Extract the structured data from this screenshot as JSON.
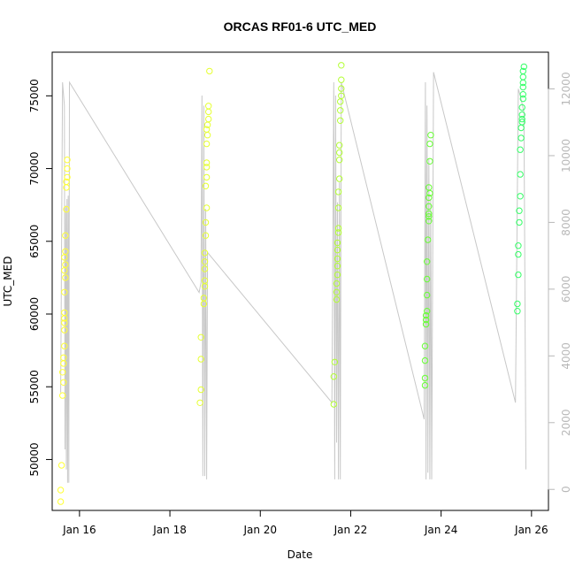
{
  "chart_data": {
    "type": "scatter",
    "title": "ORCAS RF01-6 UTC_MED",
    "xlabel": "Date",
    "ylabel": "UTC_MED",
    "xlim": [
      "2016-01-15T09:30",
      "2016-01-26T09:00"
    ],
    "ylim": [
      46500,
      78000
    ],
    "x_ticks": [
      {
        "date": "2016-01-16",
        "label": "Jan 16"
      },
      {
        "date": "2016-01-18",
        "label": "Jan 18"
      },
      {
        "date": "2016-01-20",
        "label": "Jan 20"
      },
      {
        "date": "2016-01-22",
        "label": "Jan 22"
      },
      {
        "date": "2016-01-24",
        "label": "Jan 24"
      },
      {
        "date": "2016-01-26",
        "label": "Jan 26"
      }
    ],
    "y_ticks": [
      50000,
      55000,
      60000,
      65000,
      70000,
      75000
    ],
    "y2_ticks": [
      0,
      2000,
      4000,
      6000,
      8000,
      10000,
      12000
    ],
    "y2lim": [
      -630,
      13100
    ],
    "grid": false,
    "legend": "none",
    "series": [
      {
        "color": "#ffff33",
        "points": [
          [
            "2016-01-15T14:00",
            47100
          ],
          [
            "2016-01-15T14:00",
            47900
          ],
          [
            "2016-01-15T14:30",
            49600
          ],
          [
            "2016-01-15T15:00",
            54400
          ],
          [
            "2016-01-15T15:30",
            55300
          ],
          [
            "2016-01-15T15:00",
            56000
          ],
          [
            "2016-01-15T15:30",
            56600
          ],
          [
            "2016-01-15T15:30",
            57000
          ],
          [
            "2016-01-15T16:00",
            57800
          ],
          [
            "2016-01-15T16:00",
            58900
          ],
          [
            "2016-01-15T16:00",
            59400
          ],
          [
            "2016-01-15T16:00",
            59700
          ],
          [
            "2016-01-15T16:00",
            60100
          ],
          [
            "2016-01-15T16:00",
            61500
          ],
          [
            "2016-01-15T16:30",
            62500
          ],
          [
            "2016-01-15T16:00",
            63000
          ],
          [
            "2016-01-15T16:30",
            63400
          ],
          [
            "2016-01-15T16:00",
            63900
          ],
          [
            "2016-01-15T16:30",
            64300
          ],
          [
            "2016-01-15T16:30",
            65400
          ],
          [
            "2016-01-15T17:00",
            67200
          ],
          [
            "2016-01-15T17:00",
            68700
          ],
          [
            "2016-01-15T17:00",
            69100
          ],
          [
            "2016-01-15T17:30",
            69400
          ],
          [
            "2016-01-15T17:30",
            70000
          ],
          [
            "2016-01-15T17:30",
            70600
          ]
        ]
      },
      {
        "color": "#e6ff33",
        "points": [
          [
            "2016-01-18T16:00",
            53900
          ],
          [
            "2016-01-18T16:30",
            54800
          ],
          [
            "2016-01-18T16:30",
            56900
          ],
          [
            "2016-01-18T16:30",
            58400
          ],
          [
            "2016-01-18T18:00",
            60700
          ],
          [
            "2016-01-18T18:00",
            61100
          ],
          [
            "2016-01-18T18:30",
            61900
          ],
          [
            "2016-01-18T18:30",
            62300
          ],
          [
            "2016-01-18T18:30",
            63100
          ],
          [
            "2016-01-18T18:30",
            63600
          ],
          [
            "2016-01-18T18:30",
            64200
          ],
          [
            "2016-01-18T19:00",
            65400
          ],
          [
            "2016-01-18T19:00",
            66300
          ],
          [
            "2016-01-18T19:30",
            67300
          ],
          [
            "2016-01-18T19:00",
            68800
          ],
          [
            "2016-01-18T19:30",
            69400
          ],
          [
            "2016-01-18T19:30",
            70100
          ],
          [
            "2016-01-18T19:30",
            70400
          ],
          [
            "2016-01-18T19:30",
            71700
          ],
          [
            "2016-01-18T20:00",
            72300
          ],
          [
            "2016-01-18T19:30",
            72700
          ],
          [
            "2016-01-18T20:00",
            73000
          ],
          [
            "2016-01-18T20:30",
            73400
          ],
          [
            "2016-01-18T20:30",
            73900
          ],
          [
            "2016-01-18T20:30",
            74300
          ],
          [
            "2016-01-18T21:00",
            76700
          ]
        ]
      },
      {
        "color": "#b3ff33",
        "points": [
          [
            "2016-01-21T15:00",
            53800
          ],
          [
            "2016-01-21T15:00",
            55700
          ],
          [
            "2016-01-21T15:30",
            56700
          ],
          [
            "2016-01-21T16:30",
            61000
          ],
          [
            "2016-01-21T16:30",
            61500
          ],
          [
            "2016-01-21T16:30",
            62100
          ],
          [
            "2016-01-21T17:00",
            62700
          ],
          [
            "2016-01-21T17:00",
            63300
          ],
          [
            "2016-01-21T17:00",
            63800
          ],
          [
            "2016-01-21T17:00",
            64400
          ],
          [
            "2016-01-21T17:00",
            64900
          ],
          [
            "2016-01-21T17:30",
            65600
          ],
          [
            "2016-01-21T17:30",
            65900
          ],
          [
            "2016-01-21T17:30",
            67300
          ],
          [
            "2016-01-21T17:30",
            68400
          ],
          [
            "2016-01-21T18:00",
            69300
          ],
          [
            "2016-01-21T18:00",
            70600
          ],
          [
            "2016-01-21T18:00",
            71100
          ],
          [
            "2016-01-21T18:00",
            71600
          ],
          [
            "2016-01-21T18:30",
            73300
          ],
          [
            "2016-01-21T18:30",
            74000
          ],
          [
            "2016-01-21T18:30",
            74600
          ],
          [
            "2016-01-21T19:00",
            75000
          ],
          [
            "2016-01-21T19:00",
            75500
          ],
          [
            "2016-01-21T19:00",
            76100
          ],
          [
            "2016-01-21T19:00",
            77100
          ]
        ]
      },
      {
        "color": "#66ff33",
        "points": [
          [
            "2016-01-23T15:30",
            55100
          ],
          [
            "2016-01-23T15:30",
            55600
          ],
          [
            "2016-01-23T15:30",
            56800
          ],
          [
            "2016-01-23T15:30",
            57800
          ],
          [
            "2016-01-23T16:00",
            59300
          ],
          [
            "2016-01-23T16:00",
            59600
          ],
          [
            "2016-01-23T16:00",
            59900
          ],
          [
            "2016-01-23T16:30",
            60200
          ],
          [
            "2016-01-23T16:30",
            61300
          ],
          [
            "2016-01-23T16:30",
            62400
          ],
          [
            "2016-01-23T16:30",
            63600
          ],
          [
            "2016-01-23T17:00",
            65100
          ],
          [
            "2016-01-23T17:30",
            66400
          ],
          [
            "2016-01-23T17:30",
            66700
          ],
          [
            "2016-01-23T17:30",
            66900
          ],
          [
            "2016-01-23T17:30",
            67400
          ],
          [
            "2016-01-23T17:30",
            68000
          ],
          [
            "2016-01-23T18:00",
            68300
          ],
          [
            "2016-01-23T17:30",
            68700
          ],
          [
            "2016-01-23T18:00",
            70500
          ],
          [
            "2016-01-23T18:00",
            71700
          ],
          [
            "2016-01-23T18:30",
            72300
          ]
        ]
      },
      {
        "color": "#33ff66",
        "points": [
          [
            "2016-01-25T16:30",
            60200
          ],
          [
            "2016-01-25T16:30",
            60700
          ],
          [
            "2016-01-25T17:00",
            62700
          ],
          [
            "2016-01-25T17:00",
            64100
          ],
          [
            "2016-01-25T17:00",
            64700
          ],
          [
            "2016-01-25T17:30",
            66300
          ],
          [
            "2016-01-25T17:30",
            67100
          ],
          [
            "2016-01-25T18:00",
            68100
          ],
          [
            "2016-01-25T18:00",
            69600
          ],
          [
            "2016-01-25T18:00",
            71300
          ],
          [
            "2016-01-25T18:30",
            72100
          ],
          [
            "2016-01-25T18:30",
            72800
          ],
          [
            "2016-01-25T19:00",
            73200
          ],
          [
            "2016-01-25T19:00",
            73700
          ],
          [
            "2016-01-25T19:00",
            73400
          ],
          [
            "2016-01-25T19:00",
            74200
          ],
          [
            "2016-01-25T19:30",
            74800
          ],
          [
            "2016-01-25T19:30",
            75100
          ],
          [
            "2016-01-25T19:30",
            75600
          ],
          [
            "2016-01-25T19:30",
            75900
          ],
          [
            "2016-01-25T19:30",
            76300
          ],
          [
            "2016-01-25T19:30",
            76700
          ],
          [
            "2016-01-25T20:00",
            77000
          ]
        ]
      }
    ],
    "secondary_line": {
      "color": "#c8c8c8",
      "points": [
        [
          "2016-01-15T14:00",
          2900
        ],
        [
          "2016-01-15T15:00",
          12200
        ],
        [
          "2016-01-15T16:00",
          11500
        ],
        [
          "2016-01-15T16:20",
          1200
        ],
        [
          "2016-01-15T16:40",
          8500
        ],
        [
          "2016-01-15T17:00",
          600
        ],
        [
          "2016-01-15T17:20",
          8700
        ],
        [
          "2016-01-15T17:40",
          200
        ],
        [
          "2016-01-15T18:00",
          8800
        ],
        [
          "2016-01-15T18:20",
          200
        ],
        [
          "2016-01-15T18:40",
          12200
        ],
        [
          "2016-01-18T15:30",
          5900
        ],
        [
          "2016-01-18T16:30",
          6200
        ],
        [
          "2016-01-18T17:00",
          11800
        ],
        [
          "2016-01-18T17:30",
          400
        ],
        [
          "2016-01-18T18:00",
          11500
        ],
        [
          "2016-01-18T18:30",
          400
        ],
        [
          "2016-01-18T19:00",
          8400
        ],
        [
          "2016-01-18T19:30",
          300
        ],
        [
          "2016-01-18T20:00",
          7100
        ],
        [
          "2016-01-21T14:00",
          2600
        ],
        [
          "2016-01-21T15:00",
          12200
        ],
        [
          "2016-01-21T15:30",
          300
        ],
        [
          "2016-01-21T16:00",
          11800
        ],
        [
          "2016-01-21T16:30",
          1400
        ],
        [
          "2016-01-21T17:00",
          8600
        ],
        [
          "2016-01-21T17:30",
          300
        ],
        [
          "2016-01-21T18:00",
          9200
        ],
        [
          "2016-01-21T18:30",
          300
        ],
        [
          "2016-01-21T19:00",
          12200
        ],
        [
          "2016-01-23T15:00",
          2100
        ],
        [
          "2016-01-23T15:40",
          12200
        ],
        [
          "2016-01-23T16:00",
          300
        ],
        [
          "2016-01-23T16:30",
          11500
        ],
        [
          "2016-01-23T17:00",
          500
        ],
        [
          "2016-01-23T17:30",
          9900
        ],
        [
          "2016-01-23T18:00",
          300
        ],
        [
          "2016-01-23T18:30",
          8700
        ],
        [
          "2016-01-23T19:00",
          300
        ],
        [
          "2016-01-23T20:00",
          12500
        ],
        [
          "2016-01-25T15:30",
          2600
        ],
        [
          "2016-01-25T17:00",
          12000
        ],
        [
          "2016-01-25T18:00",
          11800
        ],
        [
          "2016-01-25T20:00",
          11300
        ],
        [
          "2016-01-25T21:00",
          600
        ]
      ]
    }
  }
}
